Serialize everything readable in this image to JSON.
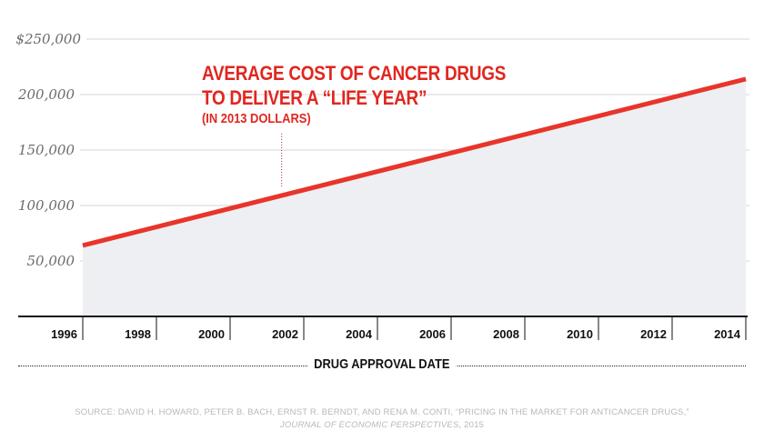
{
  "chart_data": {
    "type": "area",
    "title": "AVERAGE COST OF CANCER DRUGS TO DELIVER A “LIFE YEAR”",
    "title_lines": [
      "AVERAGE COST OF CANCER DRUGS",
      "TO DELIVER A “LIFE YEAR”"
    ],
    "subtitle": "(IN 2013 DOLLARS)",
    "xlabel": "DRUG APPROVAL DATE",
    "ylabel": "",
    "x": [
      1996,
      2014
    ],
    "series": [
      {
        "name": "Average cost per life year",
        "x": [
          1996,
          2014
        ],
        "values": [
          64000,
          214000
        ]
      }
    ],
    "xlim": [
      1996,
      2014
    ],
    "ylim": [
      0,
      250000
    ],
    "x_ticks": [
      1996,
      1998,
      2000,
      2002,
      2004,
      2006,
      2008,
      2010,
      2012,
      2014
    ],
    "x_tick_labels": [
      "1996",
      "1998",
      "2000",
      "2002",
      "2004",
      "2006",
      "2008",
      "2010",
      "2012",
      "2014"
    ],
    "y_ticks": [
      50000,
      100000,
      150000,
      200000,
      250000
    ],
    "y_tick_labels": [
      "50,000",
      "100,000",
      "150,000",
      "200,000",
      "$250,000"
    ],
    "grid": true,
    "legend": "none",
    "annotation": {
      "text": "AVERAGE COST OF CANCER DRUGS TO DELIVER A “LIFE YEAR” (IN 2013 DOLLARS)",
      "points_to_x": 2001.4
    },
    "colors": {
      "line": "#e8352a",
      "fill": "#eeeff3",
      "grid": "#d4d4d4",
      "title": "#e0271f",
      "axis": "#111111"
    }
  },
  "source": {
    "line1": "SOURCE: DAVID H. HOWARD, PETER B. BACH, ERNST R. BERNDT, AND RENA M. CONTI, “PRICING IN THE MARKET FOR ANTICANCER DRUGS,”",
    "journal": "JOURNAL OF ECONOMIC PERSPECTIVES",
    "year": ", 2015"
  }
}
